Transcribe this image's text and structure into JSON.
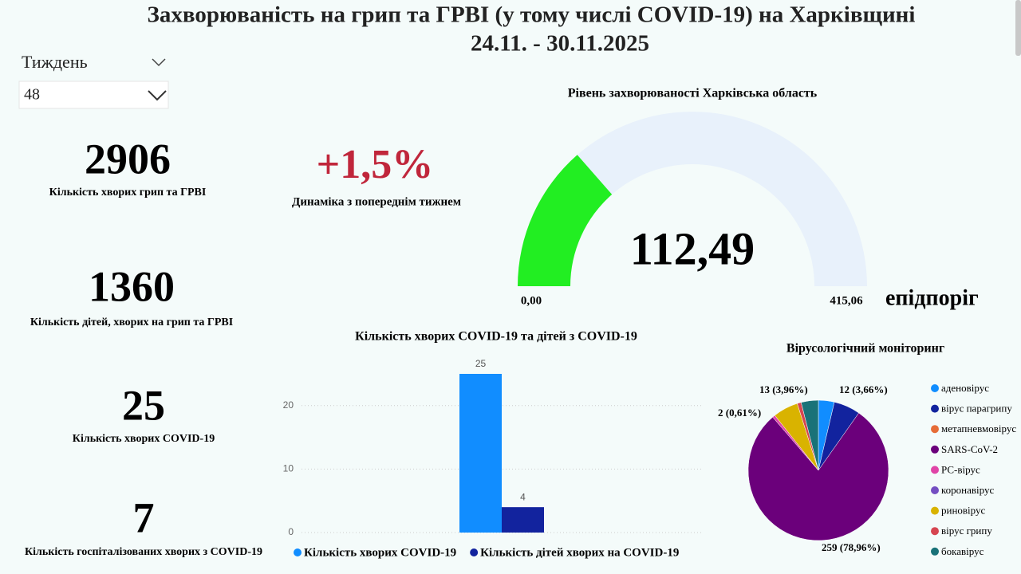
{
  "header": {
    "title": "Захворюваність на грип та ГРВІ (у тому числі COVID-19) на Харківщині",
    "subtitle": "24.11. - 30.11.2025"
  },
  "filter": {
    "label": "Тиждень",
    "value": "48"
  },
  "kpis": [
    {
      "value": 2906,
      "label": "Кількість хворих грип та ГРВІ"
    },
    {
      "value": 1360,
      "label": "Кількість дітей, хворих на грип та ГРВІ"
    },
    {
      "value": 25,
      "label": "Кількість хворих COVID-19"
    },
    {
      "value": 7,
      "label": "Кількість госпіталізованих хворих з COVID-19"
    }
  ],
  "dynamics": {
    "value": "+1,5%",
    "label": "Динаміка з попереднім тижнем"
  },
  "chart_data": [
    {
      "type": "gauge",
      "title": "Рівень захворюваності Харківська область",
      "value": 112.49,
      "value_label": "112,49",
      "min": {
        "value": 0,
        "label": "0,00"
      },
      "max": {
        "value": 415.06,
        "label": "415,06"
      },
      "annotation": "епідпоріг",
      "color": "#22ee22",
      "track_color": "#e8f1fb"
    },
    {
      "type": "bar",
      "title": "Кількість хворих COVID-19 та дітей з COVID-19",
      "categories": [
        null
      ],
      "series": [
        {
          "name": "Кількість хворих COVID-19",
          "color": "#118dff",
          "values": [
            25
          ]
        },
        {
          "name": "Кількість дітей хворих на COVID-19",
          "color": "#12239e",
          "values": [
            4
          ]
        }
      ],
      "ylim": [
        0,
        25.5
      ],
      "yticks": [
        0,
        10,
        20
      ],
      "grid": true
    },
    {
      "type": "pie",
      "title": "Вірусологічний моніторинг",
      "categories": [
        "аденовірус",
        "вірус парагрипу",
        "метапневмовірус",
        "SARS-CoV-2",
        "РС-вірус",
        "коронавірус",
        "риновірус",
        "вірус грипу",
        "бокавірус"
      ],
      "values": [
        12,
        20,
        0,
        259,
        2,
        0,
        19,
        3,
        13
      ],
      "value_labels": [
        "12 (3,66%)",
        null,
        null,
        "259 (78,96%)",
        "2 (0,61%)",
        null,
        null,
        null,
        "13 (3,96%)"
      ],
      "colors": [
        "#118dff",
        "#12239e",
        "#e66c37",
        "#6b007b",
        "#e044a7",
        "#744ec2",
        "#d9b300",
        "#d64550",
        "#197278"
      ]
    }
  ]
}
